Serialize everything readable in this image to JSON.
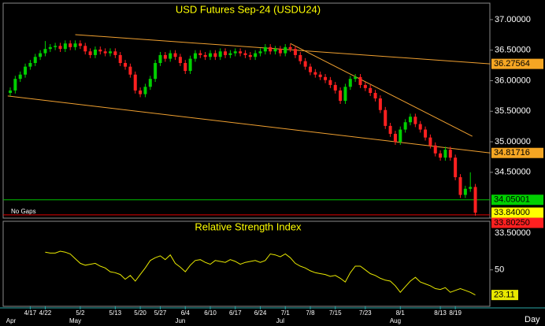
{
  "chart_data": [
    {
      "type": "candlestick",
      "title": "USD Futures Sep-24 (USDU24)",
      "gap_mode": "No Gaps",
      "up_color": "#00d000",
      "down_color": "#ff2020",
      "categories": [
        null,
        null,
        null,
        null,
        "4/17",
        null,
        null,
        "4/22",
        null,
        null,
        null,
        null,
        null,
        null,
        "5/2",
        null,
        null,
        null,
        null,
        null,
        null,
        "5/13",
        null,
        null,
        null,
        null,
        "5/20",
        null,
        null,
        null,
        "5/27",
        null,
        null,
        null,
        null,
        "6/4",
        null,
        null,
        null,
        null,
        "6/10",
        null,
        null,
        null,
        null,
        "6/17",
        null,
        null,
        null,
        null,
        "6/24",
        null,
        null,
        null,
        null,
        "7/1",
        null,
        null,
        null,
        null,
        "7/8",
        null,
        null,
        null,
        null,
        "7/15",
        null,
        null,
        null,
        null,
        null,
        "7/23",
        null,
        null,
        null,
        null,
        null,
        null,
        "8/1",
        null,
        null,
        null,
        null,
        null,
        null,
        null,
        "8/13",
        null,
        null,
        "8/19",
        null,
        null,
        null,
        null
      ],
      "month_categories": [
        "Apr",
        null,
        null,
        null,
        null,
        null,
        null,
        null,
        null,
        null,
        null,
        null,
        null,
        "May",
        null,
        null,
        null,
        null,
        null,
        null,
        null,
        null,
        null,
        null,
        null,
        null,
        null,
        null,
        null,
        null,
        null,
        null,
        null,
        null,
        "Jun",
        null,
        null,
        null,
        null,
        null,
        null,
        null,
        null,
        null,
        null,
        null,
        null,
        null,
        null,
        null,
        null,
        null,
        null,
        null,
        "Jul",
        null,
        null,
        null,
        null,
        null,
        null,
        null,
        null,
        null,
        null,
        null,
        null,
        null,
        null,
        null,
        null,
        null,
        null,
        null,
        null,
        null,
        null,
        "Aug",
        null,
        null,
        null,
        null,
        null,
        null,
        null,
        null,
        null,
        null,
        null,
        null,
        null,
        null,
        null,
        null
      ],
      "open": [
        35.8,
        35.84,
        36.03,
        36.1,
        36.23,
        36.29,
        36.39,
        36.45,
        36.52,
        36.55,
        36.57,
        36.52,
        36.61,
        36.55,
        36.61,
        36.57,
        36.48,
        36.42,
        36.51,
        36.48,
        36.45,
        36.48,
        36.42,
        36.29,
        36.23,
        36.1,
        35.84,
        35.78,
        35.9,
        36.03,
        36.29,
        36.42,
        36.36,
        36.45,
        36.39,
        36.29,
        36.16,
        36.36,
        36.45,
        36.42,
        36.39,
        36.45,
        36.39,
        36.48,
        36.42,
        36.45,
        36.48,
        36.45,
        36.42,
        36.39,
        36.45,
        36.48,
        36.55,
        36.48,
        36.52,
        36.45,
        36.55,
        36.52,
        36.42,
        36.32,
        36.23,
        36.14,
        36.1,
        36.06,
        36.01,
        35.93,
        35.84,
        35.67,
        35.9,
        36.03,
        36.06,
        35.93,
        35.88,
        35.8,
        35.71,
        35.52,
        35.26,
        35.13,
        35.0,
        35.2,
        35.32,
        35.41,
        35.29,
        35.2,
        35.07,
        34.94,
        34.81,
        34.74,
        34.87,
        34.74,
        34.42,
        34.13,
        34.23,
        34.26
      ],
      "high": [
        35.89,
        36.08,
        36.15,
        36.28,
        36.34,
        36.44,
        36.5,
        36.65,
        36.6,
        36.62,
        36.62,
        36.66,
        36.66,
        36.66,
        36.66,
        36.62,
        36.53,
        36.56,
        36.56,
        36.53,
        36.53,
        36.53,
        36.47,
        36.34,
        36.28,
        36.15,
        35.89,
        35.95,
        36.08,
        36.34,
        36.47,
        36.47,
        36.5,
        36.5,
        36.44,
        36.34,
        36.41,
        36.5,
        36.5,
        36.47,
        36.5,
        36.5,
        36.53,
        36.53,
        36.5,
        36.53,
        36.53,
        36.5,
        36.47,
        36.5,
        36.53,
        36.6,
        36.6,
        36.57,
        36.57,
        36.6,
        36.6,
        36.57,
        36.47,
        36.37,
        36.28,
        36.19,
        36.15,
        36.11,
        36.06,
        35.98,
        35.89,
        35.95,
        36.08,
        36.11,
        36.11,
        35.98,
        35.93,
        35.85,
        35.76,
        35.57,
        35.31,
        35.18,
        35.25,
        35.37,
        35.46,
        35.46,
        35.34,
        35.25,
        35.12,
        34.99,
        34.86,
        34.92,
        34.92,
        34.79,
        34.47,
        34.28,
        34.5,
        34.31
      ],
      "low": [
        35.75,
        35.79,
        35.98,
        36.05,
        36.18,
        36.24,
        36.34,
        36.4,
        36.47,
        36.5,
        36.47,
        36.47,
        36.5,
        36.5,
        36.52,
        36.43,
        36.37,
        36.37,
        36.43,
        36.4,
        36.4,
        36.37,
        36.24,
        36.18,
        36.05,
        35.79,
        35.73,
        35.73,
        35.85,
        35.98,
        36.24,
        36.31,
        36.31,
        36.34,
        36.24,
        36.11,
        36.11,
        36.31,
        36.37,
        36.34,
        36.34,
        36.34,
        36.34,
        36.37,
        36.37,
        36.4,
        36.4,
        36.37,
        36.34,
        36.34,
        36.4,
        36.43,
        36.43,
        36.43,
        36.4,
        36.4,
        36.47,
        36.37,
        36.27,
        36.18,
        36.09,
        36.05,
        36.01,
        35.96,
        35.88,
        35.79,
        35.62,
        35.62,
        35.85,
        35.98,
        35.88,
        35.83,
        35.75,
        35.66,
        35.47,
        35.21,
        35.08,
        34.95,
        34.95,
        35.15,
        35.27,
        35.24,
        35.15,
        35.02,
        34.89,
        34.76,
        34.69,
        34.69,
        34.69,
        34.37,
        34.08,
        34.08,
        34.18,
        33.79
      ],
      "close": [
        35.84,
        36.03,
        36.1,
        36.23,
        36.29,
        36.39,
        36.45,
        36.52,
        36.55,
        36.57,
        36.52,
        36.61,
        36.55,
        36.61,
        36.57,
        36.48,
        36.42,
        36.51,
        36.48,
        36.45,
        36.48,
        36.42,
        36.29,
        36.23,
        36.1,
        35.84,
        35.78,
        35.9,
        36.03,
        36.29,
        36.42,
        36.36,
        36.45,
        36.39,
        36.29,
        36.16,
        36.36,
        36.45,
        36.42,
        36.39,
        36.45,
        36.39,
        36.48,
        36.42,
        36.45,
        36.48,
        36.45,
        36.42,
        36.39,
        36.45,
        36.48,
        36.55,
        36.48,
        36.52,
        36.45,
        36.55,
        36.52,
        36.42,
        36.32,
        36.23,
        36.14,
        36.1,
        36.06,
        36.01,
        35.93,
        35.84,
        35.67,
        35.9,
        36.03,
        36.06,
        35.93,
        35.88,
        35.8,
        35.71,
        35.52,
        35.26,
        35.13,
        35.0,
        35.2,
        35.32,
        35.41,
        35.29,
        35.2,
        35.07,
        34.94,
        34.81,
        34.74,
        34.87,
        34.74,
        34.42,
        34.13,
        34.23,
        34.26,
        33.84
      ],
      "ylim": [
        33.75,
        37.27
      ],
      "yticks": [
        {
          "value": 37,
          "label": "37.00000"
        },
        {
          "value": 36.5,
          "label": "36.50000"
        },
        {
          "value": 36,
          "label": "36.00000"
        },
        {
          "value": 35.5,
          "label": "35.50000"
        },
        {
          "value": 35,
          "label": "35.00000"
        },
        {
          "value": 34.5,
          "label": "34.50000"
        },
        {
          "value": 33.5,
          "label": "33.50000"
        }
      ],
      "trendlines": [
        {
          "color": "#f0a030",
          "x": [
            13,
            96
          ],
          "y": [
            36.755,
            36.27564
          ]
        },
        {
          "color": "#f0a030",
          "x": [
            -0.5,
            96
          ],
          "y": [
            35.75,
            34.81716
          ]
        },
        {
          "color": "#f0a030",
          "x": [
            56,
            92.4
          ],
          "y": [
            36.61,
            35.09
          ]
        }
      ],
      "level_lines": [
        {
          "value": 34.05001,
          "color": "#00c000"
        },
        {
          "value": 33.8025,
          "color": "#e00000"
        }
      ],
      "price_labels": [
        {
          "value": 36.27564,
          "label": "36.27564",
          "color": "#f5a623"
        },
        {
          "value": 34.81716,
          "label": "34.81716",
          "color": "#f5a623"
        },
        {
          "value": 34.05001,
          "label": "34.05001",
          "color": "#00d000"
        },
        {
          "value": 33.84,
          "label": "33.84000",
          "color": "#ffff00"
        },
        {
          "value": 33.8025,
          "label": "33.80250",
          "color": "#ff2020"
        }
      ]
    },
    {
      "type": "line",
      "title": "Relative Strength Index",
      "interval": "Day",
      "series": [
        {
          "name": "RSI",
          "color": "#e8e800",
          "values": [
            null,
            null,
            null,
            null,
            null,
            null,
            null,
            69,
            68,
            68,
            70,
            69,
            67,
            62,
            57,
            55,
            56,
            57,
            54,
            52,
            48,
            47,
            45,
            40,
            44,
            38,
            45,
            52,
            60,
            63,
            65,
            61,
            66,
            57,
            53,
            48,
            55,
            60,
            61,
            58,
            56,
            60,
            59,
            58,
            61,
            59,
            56,
            58,
            59,
            60,
            58,
            60,
            67,
            66,
            64,
            67,
            63,
            57,
            54,
            52,
            49,
            47,
            46,
            45,
            43,
            44,
            41,
            37,
            47,
            54,
            54,
            50,
            46,
            44,
            41,
            39,
            38,
            33,
            26,
            32,
            38,
            42,
            37,
            35,
            33,
            30,
            29,
            31,
            26,
            28,
            30,
            28,
            26,
            23.11
          ]
        }
      ],
      "ylim": [
        11,
        102
      ],
      "yticks": [
        50
      ]
    }
  ]
}
